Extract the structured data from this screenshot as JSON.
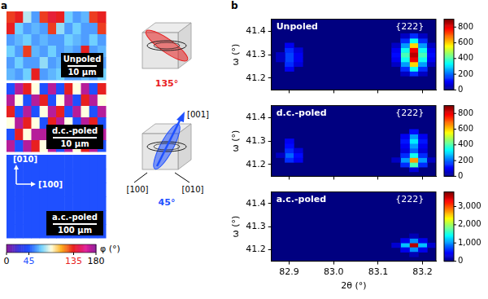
{
  "panel_letters": [
    "a",
    "b"
  ],
  "panel_a": {
    "images": [
      {
        "label": "Unpoled",
        "scale_bar": "10 μm",
        "phi": [
          [
            130,
            135,
            80,
            60,
            130,
            140,
            135,
            70,
            60,
            65,
            130,
            135
          ],
          [
            135,
            70,
            60,
            65,
            60,
            130,
            75,
            60,
            70,
            60,
            60,
            130
          ],
          [
            60,
            65,
            70,
            60,
            65,
            60,
            60,
            70,
            65,
            60,
            70,
            60
          ],
          [
            70,
            60,
            130,
            65,
            60,
            70,
            60,
            65,
            60,
            135,
            60,
            65
          ],
          [
            60,
            70,
            60,
            60,
            75,
            60,
            65,
            60,
            70,
            60,
            65,
            60
          ],
          [
            65,
            60,
            70,
            135,
            60,
            65,
            70,
            60,
            60,
            65,
            60,
            70
          ]
        ]
      },
      {
        "label": "d.c.-poled",
        "scale_bar": "10 μm",
        "phi": [
          [
            45,
            170,
            135,
            90,
            45,
            170,
            45,
            135,
            90,
            170,
            45,
            135
          ],
          [
            170,
            90,
            45,
            170,
            135,
            45,
            90,
            170,
            45,
            135,
            170,
            90
          ],
          [
            135,
            45,
            170,
            45,
            90,
            170,
            135,
            45,
            170,
            90,
            45,
            170
          ],
          [
            90,
            170,
            135,
            90,
            45,
            135,
            170,
            90,
            45,
            170,
            135,
            45
          ],
          [
            45,
            135,
            90,
            170,
            170,
            45,
            90,
            135,
            170,
            45,
            90,
            170
          ],
          [
            170,
            45,
            170,
            135,
            90,
            170,
            45,
            170,
            90,
            135,
            170,
            45
          ]
        ]
      },
      {
        "label": "a.c.-poled",
        "scale_bar": "100 μm",
        "axes": [
          "[010]",
          "[100]"
        ],
        "phi": [
          [
            45,
            45,
            45,
            45,
            45,
            45,
            45,
            45,
            45,
            45,
            45,
            45
          ],
          [
            45,
            45,
            45,
            45,
            45,
            45,
            45,
            45,
            45,
            45,
            45,
            45
          ],
          [
            45,
            45,
            45,
            45,
            45,
            45,
            45,
            45,
            45,
            45,
            45,
            45
          ],
          [
            45,
            45,
            45,
            45,
            45,
            45,
            45,
            45,
            45,
            45,
            45,
            45
          ],
          [
            45,
            45,
            45,
            45,
            45,
            45,
            45,
            45,
            45,
            45,
            45,
            45
          ],
          [
            45,
            45,
            45,
            45,
            45,
            45,
            45,
            45,
            45,
            45,
            45,
            45
          ]
        ]
      }
    ],
    "colorbar": {
      "label": "φ (°)",
      "range": [
        0,
        180
      ],
      "ticks": [
        0,
        45,
        135,
        180
      ]
    },
    "cubes": [
      {
        "value": 135,
        "label": "135°"
      },
      {
        "value": 45,
        "label": "45°",
        "axes": [
          "[001]",
          "[100]",
          "[010]"
        ]
      }
    ]
  },
  "chart_data": [
    {
      "type": "heatmap",
      "title": "Unpoled",
      "annotation": "{222}",
      "y_label": "ω (°)",
      "xlim": [
        82.86,
        83.23
      ],
      "ylim": [
        41.15,
        41.45
      ],
      "xticks": [
        82.9,
        {
          "value": 83,
          "label": "83.0"
        },
        83.1,
        83.2
      ],
      "yticks": [
        41.2,
        41.3,
        41.4
      ],
      "tick_labels": "y",
      "grid": false,
      "color": "jet",
      "cell_size": [
        0.02,
        0.02
      ],
      "cells": [
        [
          83.18,
          41.22,
          150
        ],
        [
          83.18,
          41.24,
          350
        ],
        [
          83.18,
          41.26,
          600
        ],
        [
          83.18,
          41.28,
          800
        ],
        [
          83.18,
          41.3,
          850
        ],
        [
          83.18,
          41.32,
          800
        ],
        [
          83.18,
          41.34,
          600
        ],
        [
          83.18,
          41.36,
          350
        ],
        [
          83.18,
          41.38,
          150
        ],
        [
          83.16,
          41.22,
          60
        ],
        [
          83.16,
          41.24,
          150
        ],
        [
          83.16,
          41.26,
          250
        ],
        [
          83.16,
          41.28,
          350
        ],
        [
          83.16,
          41.3,
          400
        ],
        [
          83.16,
          41.32,
          350
        ],
        [
          83.16,
          41.34,
          250
        ],
        [
          83.16,
          41.36,
          150
        ],
        [
          83.16,
          41.38,
          60
        ],
        [
          83.2,
          41.22,
          60
        ],
        [
          83.2,
          41.24,
          150
        ],
        [
          83.2,
          41.26,
          250
        ],
        [
          83.2,
          41.28,
          350
        ],
        [
          83.2,
          41.3,
          400
        ],
        [
          83.2,
          41.32,
          350
        ],
        [
          83.2,
          41.34,
          250
        ],
        [
          83.2,
          41.36,
          150
        ],
        [
          83.2,
          41.38,
          60
        ],
        [
          83.14,
          41.26,
          60
        ],
        [
          83.14,
          41.28,
          100
        ],
        [
          83.14,
          41.3,
          120
        ],
        [
          83.14,
          41.32,
          100
        ],
        [
          83.14,
          41.34,
          60
        ],
        [
          83.22,
          41.26,
          60
        ],
        [
          83.22,
          41.28,
          100
        ],
        [
          83.22,
          41.3,
          120
        ],
        [
          83.22,
          41.32,
          100
        ],
        [
          83.22,
          41.34,
          60
        ],
        [
          82.9,
          41.24,
          100
        ],
        [
          82.9,
          41.26,
          150
        ],
        [
          82.9,
          41.28,
          170
        ],
        [
          82.9,
          41.3,
          170
        ],
        [
          82.9,
          41.32,
          150
        ],
        [
          82.9,
          41.34,
          100
        ],
        [
          82.92,
          41.26,
          80
        ],
        [
          82.92,
          41.28,
          100
        ],
        [
          82.92,
          41.3,
          100
        ],
        [
          82.92,
          41.32,
          80
        ],
        [
          82.88,
          41.28,
          60
        ],
        [
          82.88,
          41.3,
          60
        ]
      ],
      "color_range": [
        0,
        900
      ],
      "color_ticks": [
        0,
        200,
        400,
        600,
        800
      ]
    },
    {
      "type": "heatmap",
      "title": "d.c.-poled",
      "annotation": "{222}",
      "y_label": "ω (°)",
      "xlim": [
        82.86,
        83.23
      ],
      "ylim": [
        41.15,
        41.45
      ],
      "xticks": [
        82.9,
        {
          "value": 83,
          "label": "83.0"
        },
        83.1,
        83.2
      ],
      "yticks": [
        41.2,
        41.3,
        41.4
      ],
      "tick_labels": "y",
      "grid": false,
      "color": "jet",
      "cell_size": [
        0.02,
        0.02
      ],
      "cells": [
        [
          83.18,
          41.18,
          80
        ],
        [
          83.18,
          41.2,
          400
        ],
        [
          83.18,
          41.22,
          650
        ],
        [
          83.18,
          41.24,
          350
        ],
        [
          83.18,
          41.26,
          200
        ],
        [
          83.18,
          41.28,
          250
        ],
        [
          83.18,
          41.3,
          320
        ],
        [
          83.18,
          41.32,
          250
        ],
        [
          83.18,
          41.34,
          120
        ],
        [
          83.16,
          41.2,
          150
        ],
        [
          83.16,
          41.22,
          250
        ],
        [
          83.16,
          41.24,
          150
        ],
        [
          83.16,
          41.26,
          80
        ],
        [
          83.16,
          41.28,
          100
        ],
        [
          83.16,
          41.3,
          130
        ],
        [
          83.16,
          41.32,
          100
        ],
        [
          83.2,
          41.2,
          150
        ],
        [
          83.2,
          41.22,
          250
        ],
        [
          83.2,
          41.24,
          150
        ],
        [
          83.2,
          41.26,
          80
        ],
        [
          83.2,
          41.28,
          100
        ],
        [
          83.2,
          41.3,
          130
        ],
        [
          83.2,
          41.32,
          100
        ],
        [
          83.14,
          41.22,
          60
        ],
        [
          83.22,
          41.22,
          60
        ],
        [
          82.9,
          41.22,
          150
        ],
        [
          82.9,
          41.24,
          200
        ],
        [
          82.9,
          41.26,
          150
        ],
        [
          82.9,
          41.28,
          120
        ],
        [
          82.9,
          41.3,
          100
        ],
        [
          82.92,
          41.22,
          100
        ],
        [
          82.92,
          41.24,
          120
        ],
        [
          82.92,
          41.26,
          80
        ],
        [
          82.88,
          41.24,
          60
        ]
      ],
      "color_range": [
        0,
        900
      ],
      "color_ticks": [
        0,
        200,
        400,
        600,
        800
      ]
    },
    {
      "type": "heatmap",
      "title": "a.c.-poled",
      "annotation": "{222}",
      "x_label": "2θ (°)",
      "y_label": "ω (°)",
      "xlim": [
        82.86,
        83.23
      ],
      "ylim": [
        41.15,
        41.45
      ],
      "xticks": [
        82.9,
        {
          "value": 83,
          "label": "83.0"
        },
        83.1,
        83.2
      ],
      "yticks": [
        41.2,
        41.3,
        41.4
      ],
      "grid": false,
      "color": "jet",
      "cell_size": [
        0.02,
        0.02
      ],
      "cells": [
        [
          83.18,
          41.22,
          3600
        ],
        [
          83.16,
          41.22,
          1200
        ],
        [
          83.2,
          41.22,
          1200
        ],
        [
          83.18,
          41.2,
          1000
        ],
        [
          83.18,
          41.24,
          1000
        ],
        [
          83.16,
          41.2,
          400
        ],
        [
          83.2,
          41.2,
          400
        ],
        [
          83.16,
          41.24,
          400
        ],
        [
          83.2,
          41.24,
          400
        ],
        [
          83.14,
          41.22,
          300
        ],
        [
          83.22,
          41.22,
          300
        ],
        [
          83.18,
          41.26,
          200
        ],
        [
          83.18,
          41.18,
          200
        ]
      ],
      "color_range": [
        0,
        3800
      ],
      "color_ticks": [
        0,
        {
          "value": 1000,
          "label": "1,000"
        },
        {
          "value": 2000,
          "label": "2,000"
        },
        {
          "value": 3000,
          "label": "3,000"
        }
      ]
    }
  ]
}
